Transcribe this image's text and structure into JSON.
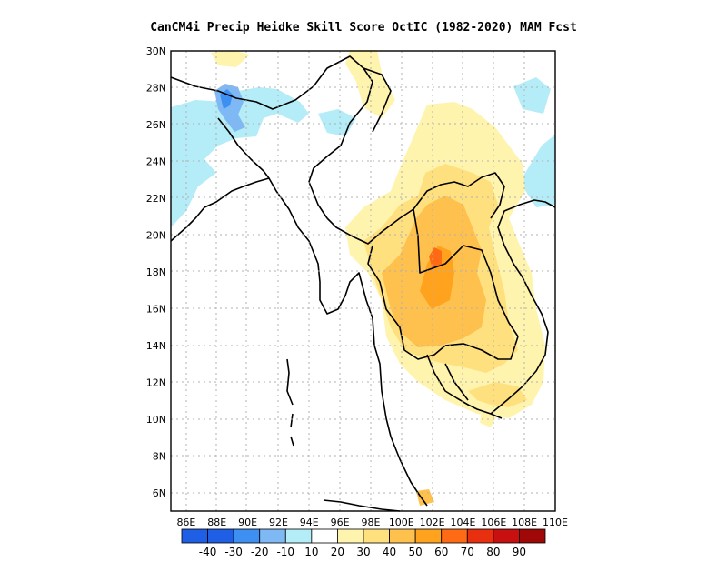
{
  "title": "CanCM4i Precip Heidke Skill Score OctIC (1982-2020) MAM Fcst",
  "map_data": {
    "type": "heatmap",
    "x_ticks": [
      "86E",
      "88E",
      "90E",
      "92E",
      "94E",
      "96E",
      "98E",
      "100E",
      "102E",
      "104E",
      "106E",
      "108E",
      "110E"
    ],
    "y_ticks": [
      "30N",
      "28N",
      "26N",
      "24N",
      "22N",
      "20N",
      "18N",
      "16N",
      "14N",
      "12N",
      "10N",
      "8N",
      "6N"
    ],
    "lon_range": [
      85,
      110
    ],
    "lat_range": [
      5,
      30
    ],
    "grid": true,
    "colorbar": {
      "labels": [
        "-40",
        "-30",
        "-20",
        "-10",
        "10",
        "20",
        "30",
        "40",
        "50",
        "60",
        "70",
        "80",
        "90"
      ],
      "colors": [
        "#1f5fe6",
        "#3d8ff2",
        "#7fb9f5",
        "#b4ecf8",
        "#ffffff",
        "#fff4ae",
        "#ffe07f",
        "#ffc14d",
        "#ffa31f",
        "#ff6b14",
        "#e83010",
        "#c81010",
        "#a00808"
      ]
    }
  }
}
